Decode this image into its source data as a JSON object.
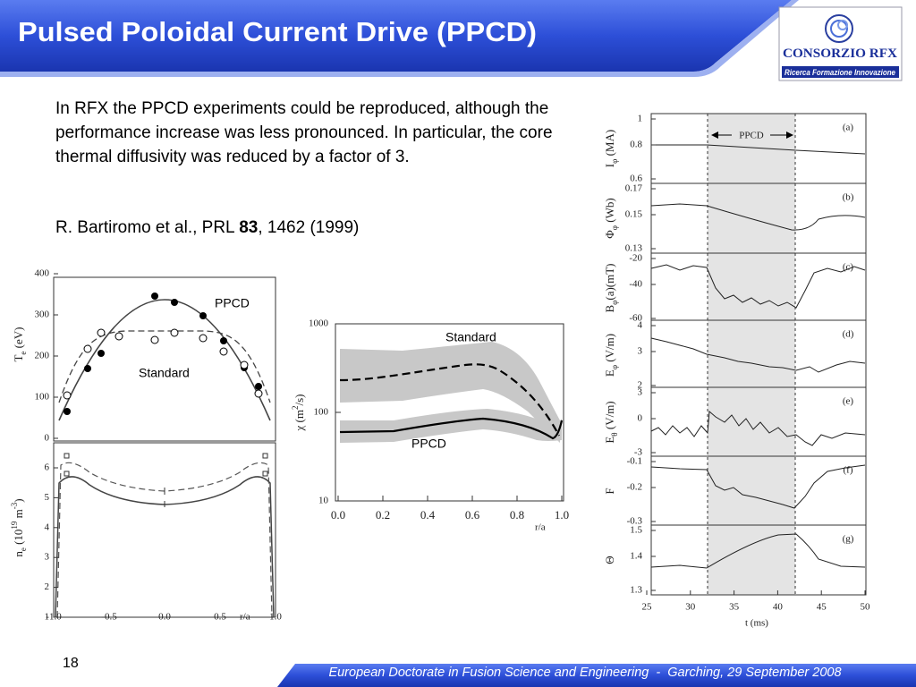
{
  "header": {
    "title": "Pulsed Poloidal Current Drive (PPCD)"
  },
  "logo": {
    "name": "CONSORZIO RFX",
    "tagline": "Ricerca Formazione Innovazione"
  },
  "body": {
    "paragraph": "In RFX the PPCD experiments could be reproduced, although the performance increase was less pronounced. In particular, the core thermal diffusivity was reduced by a factor of 3.",
    "citation": {
      "authors": "R. Bartiromo et al., PRL ",
      "volume": "83",
      "pages": ", 1462 (1999)"
    }
  },
  "figure_profiles": {
    "te_label": [
      "T",
      "e",
      " (eV)"
    ],
    "te_ticks": [
      "400",
      "300",
      "200",
      "100",
      "0"
    ],
    "ne_label": [
      "n",
      "e",
      " (10",
      "19",
      " m",
      "-3",
      ")"
    ],
    "ne_ticks": [
      "6",
      "5",
      "4",
      "3",
      "2",
      "1"
    ],
    "x_ticks": [
      "-1.0",
      "-0.5",
      "0.0",
      "0.5",
      "1.0"
    ],
    "x_label": "r/a",
    "ppcd": "PPCD",
    "standard": "Standard"
  },
  "figure_chi": {
    "y_label": [
      "χ",
      " (m",
      "2",
      "/s)"
    ],
    "y_ticks": [
      "1000",
      "100",
      "10"
    ],
    "x_ticks": [
      "0.0",
      "0.2",
      "0.4",
      "0.6",
      "0.8",
      "1.0"
    ],
    "x_label": "r/a",
    "standard": "Standard",
    "ppcd": "PPCD"
  },
  "figure_time": {
    "ppcd": "PPCD",
    "panels": [
      {
        "tag": "(a)",
        "label": [
          "I",
          "φ",
          " (MA)"
        ],
        "ticks": [
          "1",
          "0.8",
          "0.6"
        ]
      },
      {
        "tag": "(b)",
        "label": [
          "Φ",
          "φ",
          " (Wb)"
        ],
        "ticks": [
          "0.17",
          "0.15",
          "0.13"
        ]
      },
      {
        "tag": "(c)",
        "label": [
          "B",
          "φ",
          "(a)(mT)"
        ],
        "ticks": [
          "-20",
          "-40",
          "-60"
        ]
      },
      {
        "tag": "(d)",
        "label": [
          "E",
          "φ",
          " (V/m)"
        ],
        "ticks": [
          "4",
          "3",
          "2"
        ]
      },
      {
        "tag": "(e)",
        "label": [
          "E",
          "θ",
          " (V/m)"
        ],
        "ticks": [
          "3",
          "0",
          "-3"
        ]
      },
      {
        "tag": "(f)",
        "label": [
          "F"
        ],
        "ticks": [
          "-0.1",
          "-0.2",
          "-0.3"
        ]
      },
      {
        "tag": "(g)",
        "label": [
          "Θ"
        ],
        "ticks": [
          "1.5",
          "1.4",
          "1.3"
        ]
      }
    ],
    "x_ticks": [
      "25",
      "30",
      "35",
      "40",
      "45",
      "50"
    ],
    "x_label": "t (ms)"
  },
  "footer": {
    "page": "18",
    "text": "European Doctorate in Fusion Science and Engineering  -  Garching, 29 September 2008"
  }
}
